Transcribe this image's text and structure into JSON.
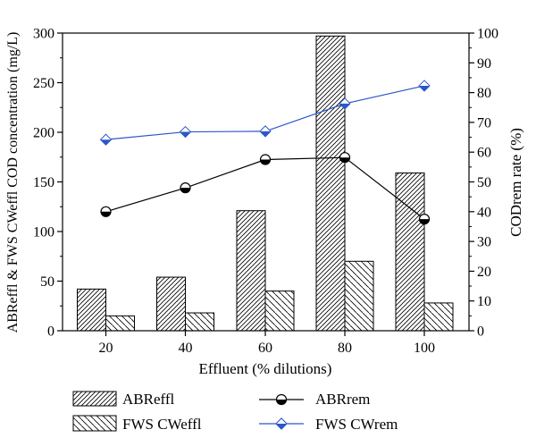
{
  "chart_data": {
    "type": "bar",
    "categories": [
      "20",
      "40",
      "60",
      "80",
      "100"
    ],
    "xlabel": "Effluent (% dilutions)",
    "ylabel_left": "ABReffl & FWS CWeffl COD concentration (mg/L)",
    "ylabel_right": "CODrem rate (%)",
    "ylim_left": [
      0,
      300
    ],
    "ylim_right": [
      0,
      100
    ],
    "yticks_left": [
      "0",
      "50",
      "100",
      "150",
      "200",
      "250",
      "300"
    ],
    "yticks_right": [
      "0",
      "10",
      "20",
      "30",
      "40",
      "50",
      "60",
      "70",
      "80",
      "90",
      "100"
    ],
    "grid": false,
    "legend_position": "bottom",
    "bar_series": [
      {
        "name": "ABReffl",
        "values": [
          42,
          54,
          121,
          297,
          159
        ],
        "pattern": "hatch-right"
      },
      {
        "name": "FWS CWeffl",
        "values": [
          15,
          18,
          40,
          70,
          28
        ],
        "pattern": "hatch-left"
      }
    ],
    "line_series": [
      {
        "name": "ABRrem",
        "values": [
          40,
          48,
          57.5,
          58.2,
          37.5
        ],
        "color": "#000000",
        "marker": "half-circle"
      },
      {
        "name": "FWS CWrem",
        "values": [
          64.2,
          66.8,
          67.0,
          76.3,
          82.3
        ],
        "color": "#2b57c9",
        "marker": "diamond"
      }
    ]
  }
}
